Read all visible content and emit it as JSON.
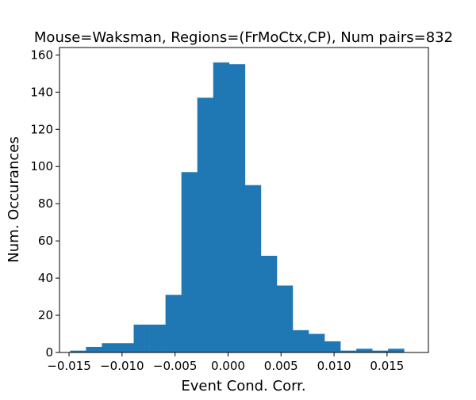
{
  "chart_data": {
    "type": "bar",
    "title": "Mouse=Waksman, Regions=(FrMoCtx,CP), Num pairs=832",
    "xlabel": "Event Cond. Corr.",
    "ylabel": "Num. Occurances",
    "xlim": [
      -0.0159,
      0.0189
    ],
    "ylim": [
      0,
      164
    ],
    "bin_edges": [
      -0.0149,
      -0.0134,
      -0.0119,
      -0.0104,
      -0.0089,
      -0.0074,
      -0.0059,
      -0.0044,
      -0.0029,
      -0.0014,
      0.0001,
      0.0016,
      0.0031,
      0.0046,
      0.0061,
      0.0076,
      0.0091,
      0.0106,
      0.0121,
      0.0136,
      0.0151,
      0.0166,
      0.018
    ],
    "values": [
      1,
      3,
      5,
      5,
      15,
      15,
      31,
      97,
      137,
      156,
      155,
      90,
      52,
      36,
      12,
      10,
      6,
      1,
      2,
      1,
      2,
      0
    ],
    "x_ticks": [
      {
        "value": -0.015,
        "label": "−0.015"
      },
      {
        "value": -0.01,
        "label": "−0.010"
      },
      {
        "value": -0.005,
        "label": "−0.005"
      },
      {
        "value": 0.0,
        "label": "0.000"
      },
      {
        "value": 0.005,
        "label": "0.005"
      },
      {
        "value": 0.01,
        "label": "0.010"
      },
      {
        "value": 0.015,
        "label": "0.015"
      }
    ],
    "y_ticks": [
      {
        "value": 0,
        "label": "0"
      },
      {
        "value": 20,
        "label": "20"
      },
      {
        "value": 40,
        "label": "40"
      },
      {
        "value": 60,
        "label": "60"
      },
      {
        "value": 80,
        "label": "80"
      },
      {
        "value": 100,
        "label": "100"
      },
      {
        "value": 120,
        "label": "120"
      },
      {
        "value": 140,
        "label": "140"
      },
      {
        "value": 160,
        "label": "160"
      }
    ],
    "bar_color": "#1f77b4",
    "grid": false
  }
}
